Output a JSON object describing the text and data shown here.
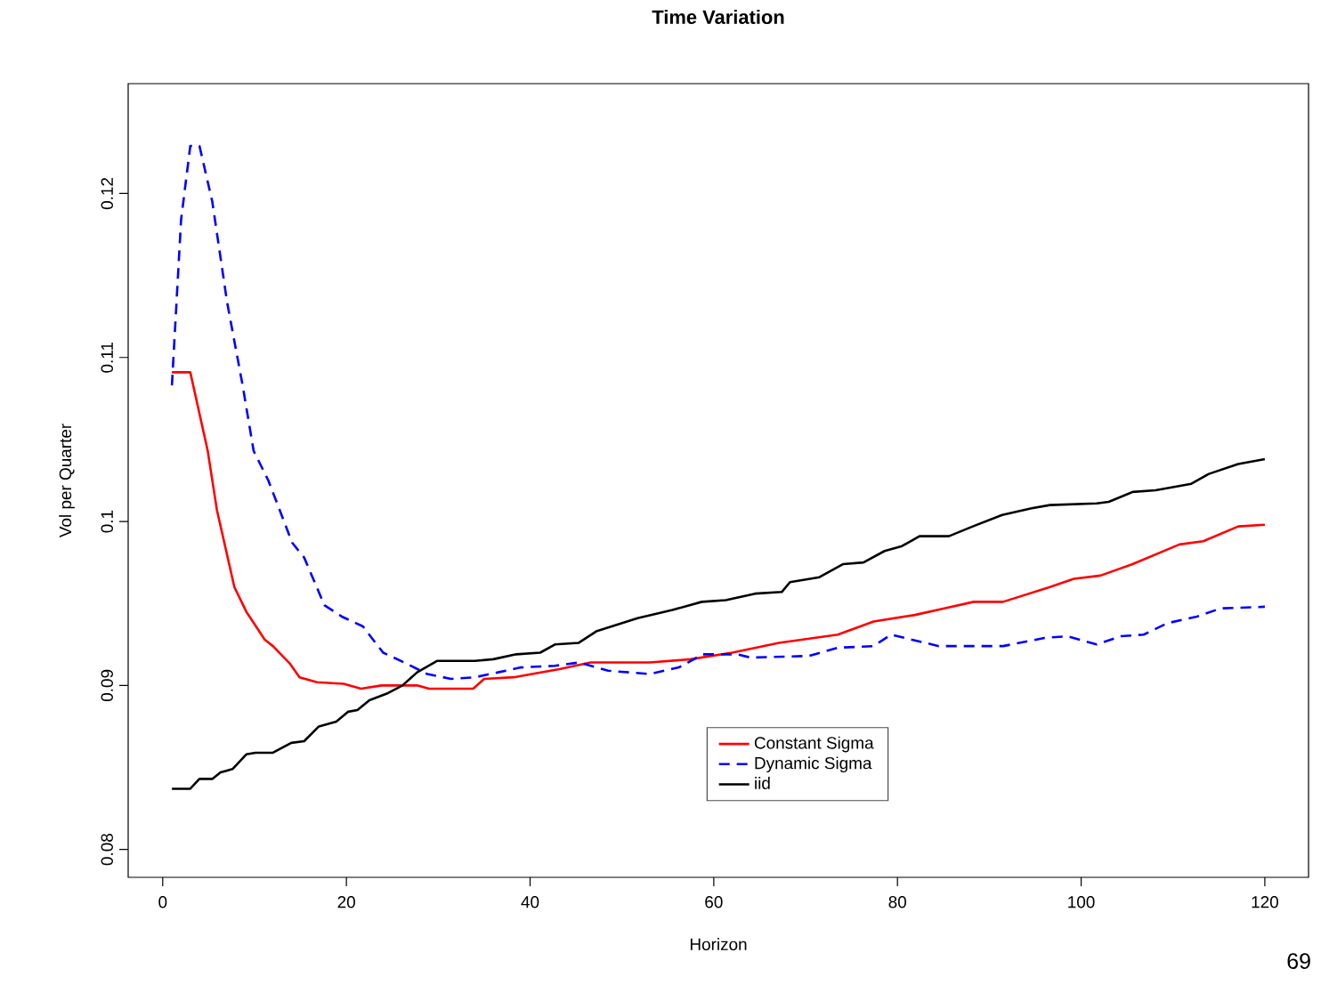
{
  "chart_data": {
    "type": "line",
    "title": "Time Variation",
    "xlabel": "Horizon",
    "ylabel": "Vol per Quarter",
    "xlim": [
      -3.76,
      124.76
    ],
    "ylim": [
      0.0783,
      0.1267
    ],
    "xticks": [
      0,
      20,
      40,
      60,
      80,
      100,
      120
    ],
    "yticks": [
      0.08,
      0.09,
      0.1,
      0.11,
      0.12
    ],
    "legend": "bottom",
    "grid": false,
    "marker": "none",
    "annotations": [
      "69"
    ],
    "series": [
      {
        "name": "Constant Sigma",
        "color": "#ff0000",
        "line_style": "solid",
        "x": [
          1,
          3,
          4.9,
          5.9,
          7.8,
          9.1,
          11.1,
          12,
          13.9,
          14.9,
          16.8,
          19.7,
          21.6,
          23.8,
          27.7,
          29,
          33.8,
          35,
          38.2,
          40.2,
          43.2,
          46.6,
          53,
          57.5,
          62,
          67.1,
          73.5,
          77.4,
          81.9,
          85.1,
          88.3,
          91.5,
          96.6,
          99.2,
          102.1,
          105.6,
          110.7,
          113.3,
          117.1,
          120
        ],
        "values": [
          0.1091,
          0.1091,
          0.1043,
          0.1007,
          0.096,
          0.0945,
          0.0928,
          0.0924,
          0.0913,
          0.0905,
          0.0902,
          0.0901,
          0.0898,
          0.09,
          0.09,
          0.0898,
          0.0898,
          0.0904,
          0.0905,
          0.0907,
          0.091,
          0.0914,
          0.0914,
          0.0916,
          0.092,
          0.0926,
          0.0931,
          0.0939,
          0.0943,
          0.0947,
          0.0951,
          0.0951,
          0.096,
          0.0965,
          0.0967,
          0.0974,
          0.0986,
          0.0988,
          0.0997,
          0.0998
        ]
      },
      {
        "name": "Dynamic Sigma",
        "color": "#0000ff",
        "line_style": "dashed",
        "x": [
          1,
          2,
          3,
          4,
          5.4,
          7,
          8.7,
          9.9,
          11.5,
          14.1,
          15.4,
          17.6,
          19.5,
          21.8,
          24,
          26.3,
          28.8,
          31.4,
          34,
          36.5,
          39,
          42.7,
          45.3,
          48.5,
          53,
          56.2,
          58.8,
          62.6,
          64,
          70.4,
          73.5,
          77.4,
          79.3,
          84.5,
          91.5,
          96,
          98.5,
          101.7,
          104.3,
          106.8,
          109.4,
          112.6,
          115.2,
          120
        ],
        "values": [
          0.1083,
          0.1184,
          0.1229,
          0.1229,
          0.1195,
          0.1134,
          0.1083,
          0.1043,
          0.1025,
          0.0987,
          0.0978,
          0.0949,
          0.0942,
          0.0936,
          0.092,
          0.0914,
          0.0907,
          0.0904,
          0.0905,
          0.0908,
          0.0911,
          0.0912,
          0.0914,
          0.0909,
          0.0907,
          0.0911,
          0.0919,
          0.0919,
          0.0917,
          0.0918,
          0.0923,
          0.0924,
          0.0931,
          0.0924,
          0.0924,
          0.0929,
          0.093,
          0.0925,
          0.093,
          0.0931,
          0.0938,
          0.0942,
          0.0947,
          0.0948
        ]
      },
      {
        "name": "iid",
        "color": "#000000",
        "line_style": "solid",
        "x": [
          1,
          3,
          4,
          5.4,
          6.3,
          7.6,
          9.1,
          10.1,
          12,
          14,
          15.4,
          17,
          18.9,
          20.2,
          21.2,
          22.5,
          24.4,
          26.1,
          27.7,
          29.9,
          34,
          36,
          38.5,
          41.1,
          42.7,
          45.3,
          47.2,
          51.7,
          55.5,
          58.7,
          61.3,
          64.5,
          67.4,
          68.3,
          71.5,
          74.1,
          76.3,
          78.6,
          80.5,
          82.4,
          85.6,
          88.2,
          91.4,
          94.6,
          96.6,
          101.7,
          103,
          105.6,
          108.1,
          112,
          113.9,
          117.1,
          120
        ],
        "values": [
          0.0837,
          0.0837,
          0.0843,
          0.0843,
          0.0847,
          0.0849,
          0.0858,
          0.0859,
          0.0859,
          0.0865,
          0.0866,
          0.0875,
          0.0878,
          0.0884,
          0.0885,
          0.0891,
          0.0895,
          0.09,
          0.0908,
          0.0915,
          0.0915,
          0.0916,
          0.0919,
          0.092,
          0.0925,
          0.0926,
          0.0933,
          0.0941,
          0.0946,
          0.0951,
          0.0952,
          0.0956,
          0.0957,
          0.0963,
          0.0966,
          0.0974,
          0.0975,
          0.0982,
          0.0985,
          0.0991,
          0.0991,
          0.0997,
          0.1004,
          0.1008,
          0.101,
          0.1011,
          0.1012,
          0.1018,
          0.1019,
          0.1023,
          0.1029,
          0.1035,
          0.1038
        ]
      }
    ]
  }
}
